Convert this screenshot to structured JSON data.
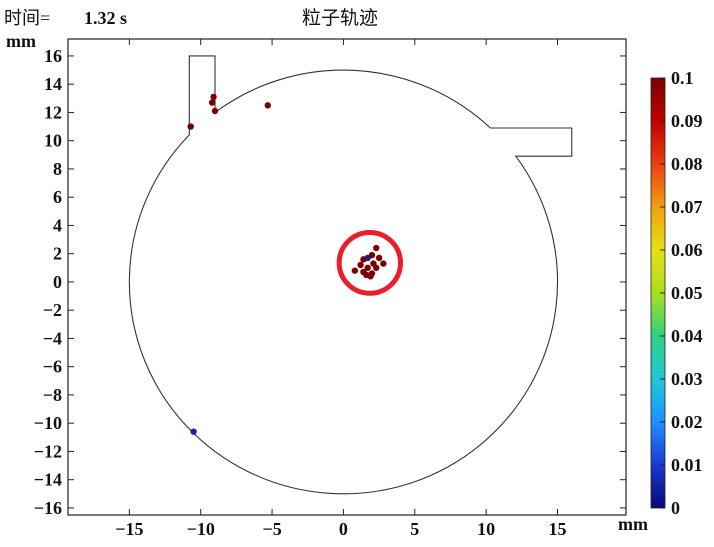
{
  "header": {
    "time_label": "时间=",
    "time_value": "1.32 s",
    "title": "粒子轨迹"
  },
  "chart_data": {
    "type": "scatter",
    "title": "粒子轨迹",
    "xlabel": "mm",
    "ylabel": "mm",
    "xlim": [
      -19.3,
      19.8
    ],
    "ylim": [
      -16.5,
      17.2
    ],
    "x_ticks": [
      -15,
      -10,
      -5,
      0,
      5,
      10,
      15
    ],
    "x_tick_labels": [
      "−15",
      "−10",
      "−5",
      "0",
      "5",
      "10",
      "15"
    ],
    "y_ticks": [
      16,
      14,
      12,
      10,
      8,
      6,
      4,
      2,
      0,
      -2,
      -4,
      -6,
      -8,
      -10,
      -12,
      -14,
      -16
    ],
    "y_tick_labels": [
      "16",
      "14",
      "12",
      "10",
      "8",
      "6",
      "4",
      "2",
      "0",
      "−2",
      "−4",
      "−6",
      "−8",
      "−10",
      "−12",
      "−14",
      "−16"
    ],
    "geometry": {
      "circle_center": [
        0,
        0
      ],
      "circle_radius": 15,
      "left_inlet": {
        "x_outer": -10.8,
        "x_inner": -9.0,
        "top": 16.0
      },
      "right_outlet": {
        "x_start": 10.3,
        "x_end": 16.0,
        "top": 10.9,
        "bottom": 8.9
      }
    },
    "target_ring": {
      "center": [
        1.85,
        1.35
      ],
      "radius": 2.15,
      "color": "#e8202a"
    },
    "particles": [
      {
        "x": -10.7,
        "y": 11.0,
        "value": 0.1
      },
      {
        "x": -9.1,
        "y": 13.1,
        "value": 0.1
      },
      {
        "x": -9.2,
        "y": 12.7,
        "value": 0.1
      },
      {
        "x": -9.0,
        "y": 12.1,
        "value": 0.1
      },
      {
        "x": -5.3,
        "y": 12.5,
        "value": 0.1
      },
      {
        "x": -10.5,
        "y": -10.6,
        "value": 0.005
      },
      {
        "x": 1.7,
        "y": 1.7,
        "value": 0.005
      },
      {
        "x": 2.3,
        "y": 2.4,
        "value": 0.1
      },
      {
        "x": 2.0,
        "y": 1.9,
        "value": 0.1
      },
      {
        "x": 2.5,
        "y": 1.7,
        "value": 0.1
      },
      {
        "x": 1.4,
        "y": 1.6,
        "value": 0.1
      },
      {
        "x": 2.1,
        "y": 1.3,
        "value": 0.1
      },
      {
        "x": 2.8,
        "y": 1.3,
        "value": 0.1
      },
      {
        "x": 1.2,
        "y": 1.2,
        "value": 0.1
      },
      {
        "x": 1.7,
        "y": 1.0,
        "value": 0.1
      },
      {
        "x": 2.3,
        "y": 1.0,
        "value": 0.1
      },
      {
        "x": 0.8,
        "y": 0.8,
        "value": 0.1
      },
      {
        "x": 1.4,
        "y": 0.7,
        "value": 0.1
      },
      {
        "x": 2.0,
        "y": 0.6,
        "value": 0.1
      },
      {
        "x": 1.9,
        "y": 0.4,
        "value": 0.1
      },
      {
        "x": 1.6,
        "y": 0.5,
        "value": 0.1
      }
    ],
    "colorbar": {
      "min": 0,
      "max": 0.1,
      "ticks": [
        0.1,
        0.09,
        0.08,
        0.07,
        0.06,
        0.05,
        0.04,
        0.03,
        0.02,
        0.01,
        0
      ],
      "tick_labels": [
        "0.1",
        "0.09",
        "0.08",
        "0.07",
        "0.06",
        "0.05",
        "0.04",
        "0.03",
        "0.02",
        "0.01",
        "0"
      ],
      "colormap": [
        "#08087a",
        "#1a3ad0",
        "#1e90ff",
        "#20c8d8",
        "#30d080",
        "#a8e020",
        "#e8e010",
        "#f0a010",
        "#e84010",
        "#c00000",
        "#7a0000"
      ]
    }
  }
}
